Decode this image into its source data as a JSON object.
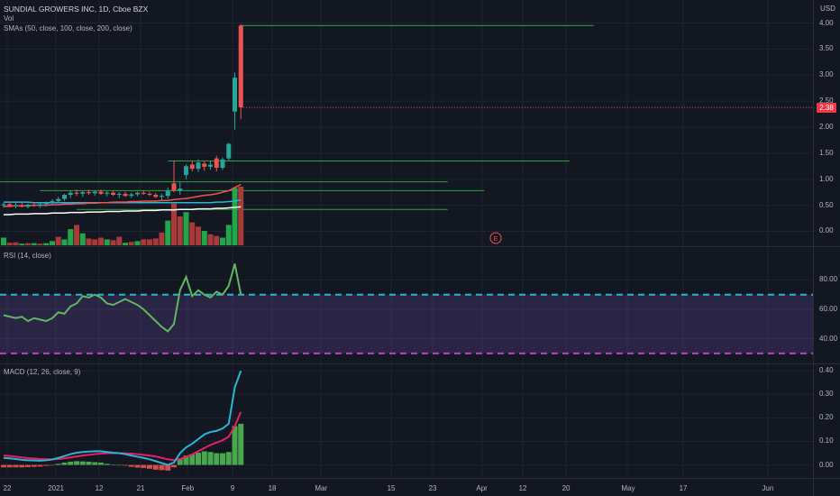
{
  "header": {
    "symbol_line": "SUNDIAL GROWERS INC, 1D, Cboe BZX",
    "vol_label": "Vol",
    "sma_label": "SMAs (50, close, 100, close, 200, close)",
    "currency": "USD"
  },
  "price_panel": {
    "ticks": [
      "4.00",
      "3.50",
      "3.00",
      "2.50",
      "2.00",
      "1.50",
      "1.00",
      "0.50",
      "0.00"
    ],
    "last_price": "2.38",
    "earnings_marker": "E"
  },
  "rsi_panel": {
    "label": "RSI (14, close)",
    "ticks": [
      "80.00",
      "60.00",
      "40.00"
    ]
  },
  "macd_panel": {
    "label": "MACD (12, 26, close, 9)",
    "ticks": [
      "0.40",
      "0.30",
      "0.20",
      "0.10",
      "0.00"
    ]
  },
  "time_axis": {
    "ticks": [
      "22",
      "2021",
      "12",
      "21",
      "Feb",
      "9",
      "18",
      "Mar",
      "15",
      "23",
      "Apr",
      "12",
      "20",
      "May",
      "17",
      "Jun"
    ]
  },
  "colors": {
    "bg": "#131722",
    "up": "#26a69a",
    "down": "#ef5350",
    "vol_up": "#22a64a",
    "vol_down": "#a83a3a",
    "hline": "#2fa33a",
    "rsi_line": "#5fb760",
    "rsi_band": "#7e57c2",
    "rsi_upper": "#29b6d6",
    "rsi_lower": "#c03ec0",
    "macd_line": "#29b6d6",
    "signal_line": "#e91e63",
    "sma50": "#ef5350",
    "sma100": "#29b6d6",
    "sma200": "#ffffff"
  },
  "chart_data": [
    {
      "type": "candlestick",
      "ylim": [
        -0.2,
        4.2
      ],
      "candles": [
        {
          "o": 0.5,
          "h": 0.55,
          "l": 0.45,
          "c": 0.52
        },
        {
          "o": 0.52,
          "h": 0.56,
          "l": 0.46,
          "c": 0.48
        },
        {
          "o": 0.48,
          "h": 0.54,
          "l": 0.44,
          "c": 0.5
        },
        {
          "o": 0.5,
          "h": 0.55,
          "l": 0.46,
          "c": 0.47
        },
        {
          "o": 0.47,
          "h": 0.53,
          "l": 0.44,
          "c": 0.51
        },
        {
          "o": 0.51,
          "h": 0.56,
          "l": 0.47,
          "c": 0.49
        },
        {
          "o": 0.49,
          "h": 0.54,
          "l": 0.45,
          "c": 0.52
        },
        {
          "o": 0.52,
          "h": 0.57,
          "l": 0.48,
          "c": 0.55
        },
        {
          "o": 0.55,
          "h": 0.62,
          "l": 0.5,
          "c": 0.58
        },
        {
          "o": 0.58,
          "h": 0.66,
          "l": 0.54,
          "c": 0.62
        },
        {
          "o": 0.62,
          "h": 0.72,
          "l": 0.58,
          "c": 0.7
        },
        {
          "o": 0.7,
          "h": 0.78,
          "l": 0.64,
          "c": 0.74
        },
        {
          "o": 0.74,
          "h": 0.8,
          "l": 0.68,
          "c": 0.72
        },
        {
          "o": 0.72,
          "h": 0.78,
          "l": 0.66,
          "c": 0.75
        },
        {
          "o": 0.75,
          "h": 0.8,
          "l": 0.7,
          "c": 0.73
        },
        {
          "o": 0.73,
          "h": 0.79,
          "l": 0.68,
          "c": 0.76
        },
        {
          "o": 0.76,
          "h": 0.8,
          "l": 0.7,
          "c": 0.72
        },
        {
          "o": 0.72,
          "h": 0.77,
          "l": 0.67,
          "c": 0.74
        },
        {
          "o": 0.74,
          "h": 0.78,
          "l": 0.68,
          "c": 0.7
        },
        {
          "o": 0.7,
          "h": 0.75,
          "l": 0.64,
          "c": 0.72
        },
        {
          "o": 0.72,
          "h": 0.76,
          "l": 0.66,
          "c": 0.68
        },
        {
          "o": 0.68,
          "h": 0.74,
          "l": 0.64,
          "c": 0.71
        },
        {
          "o": 0.71,
          "h": 0.76,
          "l": 0.67,
          "c": 0.74
        },
        {
          "o": 0.74,
          "h": 0.78,
          "l": 0.7,
          "c": 0.72
        },
        {
          "o": 0.72,
          "h": 0.76,
          "l": 0.68,
          "c": 0.7
        },
        {
          "o": 0.7,
          "h": 0.74,
          "l": 0.64,
          "c": 0.66
        },
        {
          "o": 0.66,
          "h": 0.72,
          "l": 0.6,
          "c": 0.68
        },
        {
          "o": 0.68,
          "h": 0.84,
          "l": 0.62,
          "c": 0.78
        },
        {
          "o": 0.92,
          "h": 1.35,
          "l": 0.75,
          "c": 0.78
        },
        {
          "o": 0.78,
          "h": 0.95,
          "l": 0.7,
          "c": 0.82
        },
        {
          "o": 1.08,
          "h": 1.28,
          "l": 1.0,
          "c": 1.25
        },
        {
          "o": 1.28,
          "h": 1.34,
          "l": 1.15,
          "c": 1.2
        },
        {
          "o": 1.2,
          "h": 1.38,
          "l": 1.14,
          "c": 1.32
        },
        {
          "o": 1.3,
          "h": 1.34,
          "l": 1.16,
          "c": 1.24
        },
        {
          "o": 1.24,
          "h": 1.36,
          "l": 1.18,
          "c": 1.28
        },
        {
          "o": 1.4,
          "h": 1.45,
          "l": 1.15,
          "c": 1.22
        },
        {
          "o": 1.22,
          "h": 1.42,
          "l": 1.18,
          "c": 1.38
        },
        {
          "o": 1.4,
          "h": 1.7,
          "l": 1.36,
          "c": 1.68
        },
        {
          "o": 2.3,
          "h": 3.05,
          "l": 1.95,
          "c": 2.95
        },
        {
          "o": 3.95,
          "h": 3.98,
          "l": 2.15,
          "c": 2.38
        }
      ],
      "sma50": [
        0.48,
        0.48,
        0.49,
        0.49,
        0.49,
        0.5,
        0.5,
        0.5,
        0.51,
        0.51,
        0.52,
        0.52,
        0.53,
        0.53,
        0.54,
        0.54,
        0.55,
        0.55,
        0.56,
        0.56,
        0.56,
        0.57,
        0.57,
        0.58,
        0.58,
        0.58,
        0.59,
        0.59,
        0.61,
        0.62,
        0.63,
        0.65,
        0.67,
        0.69,
        0.7,
        0.72,
        0.75,
        0.78,
        0.84,
        0.9
      ],
      "sma100": [
        0.56,
        0.56,
        0.56,
        0.56,
        0.56,
        0.55,
        0.55,
        0.55,
        0.55,
        0.55,
        0.55,
        0.55,
        0.55,
        0.55,
        0.55,
        0.55,
        0.55,
        0.55,
        0.55,
        0.55,
        0.55,
        0.55,
        0.55,
        0.55,
        0.55,
        0.55,
        0.55,
        0.55,
        0.55,
        0.55,
        0.55,
        0.55,
        0.55,
        0.55,
        0.55,
        0.56,
        0.56,
        0.57,
        0.58,
        0.6
      ],
      "sma200": [
        0.32,
        0.32,
        0.33,
        0.33,
        0.33,
        0.34,
        0.34,
        0.34,
        0.35,
        0.35,
        0.35,
        0.36,
        0.36,
        0.36,
        0.37,
        0.37,
        0.37,
        0.38,
        0.38,
        0.38,
        0.39,
        0.39,
        0.39,
        0.4,
        0.4,
        0.4,
        0.41,
        0.41,
        0.41,
        0.42,
        0.42,
        0.42,
        0.43,
        0.43,
        0.43,
        0.44,
        0.44,
        0.45,
        0.46,
        0.47
      ],
      "volume": [
        0.18,
        0.06,
        0.07,
        0.04,
        0.05,
        0.05,
        0.04,
        0.05,
        0.1,
        0.2,
        0.14,
        0.38,
        0.48,
        0.28,
        0.16,
        0.14,
        0.18,
        0.14,
        0.12,
        0.2,
        0.06,
        0.08,
        0.1,
        0.14,
        0.14,
        0.16,
        0.3,
        0.58,
        0.98,
        0.68,
        0.78,
        0.54,
        0.44,
        0.34,
        0.26,
        0.22,
        0.18,
        0.48,
        1.35,
        1.38
      ],
      "volume_up": [
        true,
        false,
        false,
        true,
        false,
        true,
        false,
        true,
        true,
        false,
        true,
        true,
        false,
        true,
        false,
        false,
        false,
        true,
        false,
        false,
        true,
        false,
        true,
        false,
        false,
        false,
        false,
        true,
        false,
        false,
        true,
        false,
        false,
        true,
        false,
        false,
        true,
        true,
        true,
        false
      ],
      "horizontal_lines": [
        {
          "price": 3.95,
          "from": 39,
          "to": 97
        },
        {
          "price": 1.35,
          "from": 27,
          "to": 93
        },
        {
          "price": 0.95,
          "from": -5,
          "to": 73
        },
        {
          "price": 0.78,
          "from": 6,
          "to": 79
        },
        {
          "price": 0.42,
          "from": 12,
          "to": 73
        }
      ]
    },
    {
      "type": "line",
      "title": "RSI (14, close)",
      "ylim": [
        25,
        95
      ],
      "upper_band": 70,
      "lower_band": 30,
      "values": [
        56,
        55,
        54,
        55,
        52,
        54,
        53,
        52,
        54,
        58,
        57,
        62,
        64,
        69,
        68,
        70,
        68,
        64,
        63,
        65,
        67,
        65,
        63,
        60,
        56,
        52,
        48,
        45,
        50,
        73,
        82,
        69,
        73,
        70,
        68,
        72,
        70,
        76,
        91,
        70
      ]
    },
    {
      "type": "line",
      "title": "MACD (12, 26, close, 9)",
      "ylim": [
        -0.04,
        0.42
      ],
      "macd": [
        0.03,
        0.028,
        0.025,
        0.022,
        0.02,
        0.019,
        0.018,
        0.02,
        0.023,
        0.03,
        0.038,
        0.046,
        0.052,
        0.055,
        0.057,
        0.058,
        0.058,
        0.055,
        0.052,
        0.05,
        0.046,
        0.04,
        0.035,
        0.03,
        0.024,
        0.016,
        0.008,
        0.0,
        0.01,
        0.05,
        0.075,
        0.09,
        0.11,
        0.13,
        0.14,
        0.145,
        0.155,
        0.175,
        0.33,
        0.4
      ],
      "signal": [
        0.04,
        0.038,
        0.035,
        0.032,
        0.029,
        0.027,
        0.025,
        0.024,
        0.024,
        0.025,
        0.028,
        0.032,
        0.036,
        0.04,
        0.043,
        0.046,
        0.048,
        0.05,
        0.05,
        0.05,
        0.049,
        0.048,
        0.046,
        0.043,
        0.04,
        0.036,
        0.03,
        0.024,
        0.02,
        0.025,
        0.035,
        0.045,
        0.058,
        0.072,
        0.085,
        0.095,
        0.105,
        0.12,
        0.165,
        0.225
      ],
      "histogram": [
        -0.01,
        -0.01,
        -0.01,
        -0.01,
        -0.009,
        -0.008,
        -0.007,
        -0.004,
        -0.001,
        0.005,
        0.01,
        0.014,
        0.016,
        0.015,
        0.014,
        0.012,
        0.01,
        0.005,
        0.002,
        0.0,
        -0.003,
        -0.008,
        -0.011,
        -0.013,
        -0.016,
        -0.02,
        -0.022,
        -0.024,
        -0.01,
        0.025,
        0.04,
        0.045,
        0.052,
        0.058,
        0.055,
        0.05,
        0.05,
        0.055,
        0.165,
        0.175
      ]
    }
  ]
}
